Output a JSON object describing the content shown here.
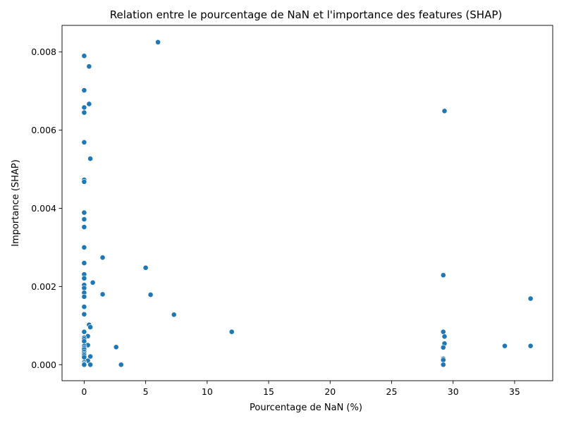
{
  "chart_data": {
    "type": "scatter",
    "title": "Relation entre le pourcentage de NaN et l'importance des features (SHAP)",
    "xlabel": "Pourcentage de NaN (%)",
    "ylabel": "Importance (SHAP)",
    "xlim": [
      -1.8,
      38.1
    ],
    "ylim": [
      -0.00041,
      0.00868
    ],
    "xticks": [
      0,
      5,
      10,
      15,
      20,
      25,
      30,
      35
    ],
    "xtick_labels": [
      "0",
      "5",
      "10",
      "15",
      "20",
      "25",
      "30",
      "35"
    ],
    "yticks": [
      0.0,
      0.002,
      0.004,
      0.006,
      0.008
    ],
    "ytick_labels": [
      "0.000",
      "0.002",
      "0.004",
      "0.006",
      "0.008"
    ],
    "grid": false,
    "legend": "none",
    "marker_color": "#1f77b4",
    "points": [
      [
        6.0,
        0.00825
      ],
      [
        0.0,
        0.0079
      ],
      [
        0.4,
        0.00763
      ],
      [
        0.0,
        0.00702
      ],
      [
        0.4,
        0.00667
      ],
      [
        0.0,
        0.00658
      ],
      [
        0.0,
        0.00645
      ],
      [
        29.3,
        0.00649
      ],
      [
        0.0,
        0.00569
      ],
      [
        0.5,
        0.00527
      ],
      [
        0.0,
        0.00473
      ],
      [
        0.0,
        0.00468
      ],
      [
        0.0,
        0.00389
      ],
      [
        0.0,
        0.00372
      ],
      [
        0.0,
        0.00352
      ],
      [
        0.0,
        0.003
      ],
      [
        1.5,
        0.00274
      ],
      [
        0.0,
        0.0026
      ],
      [
        5.0,
        0.00248
      ],
      [
        0.0,
        0.00231
      ],
      [
        29.2,
        0.00229
      ],
      [
        0.0,
        0.00221
      ],
      [
        0.7,
        0.0021
      ],
      [
        0.0,
        0.00204
      ],
      [
        0.0,
        0.00196
      ],
      [
        0.0,
        0.00184
      ],
      [
        1.5,
        0.0018
      ],
      [
        5.4,
        0.00179
      ],
      [
        0.0,
        0.00174
      ],
      [
        36.3,
        0.00169
      ],
      [
        0.0,
        0.00148
      ],
      [
        0.0,
        0.00129
      ],
      [
        7.3,
        0.00128
      ],
      [
        0.4,
        0.00102
      ],
      [
        0.5,
        0.00096
      ],
      [
        0.0,
        0.00084
      ],
      [
        12.0,
        0.00084
      ],
      [
        29.2,
        0.00084
      ],
      [
        0.3,
        0.00073
      ],
      [
        29.3,
        0.00072
      ],
      [
        0.0,
        0.00069
      ],
      [
        0.0,
        0.00065
      ],
      [
        0.0,
        0.0006
      ],
      [
        29.3,
        0.00054
      ],
      [
        0.3,
        0.0005
      ],
      [
        0.0,
        0.00048
      ],
      [
        34.2,
        0.00048
      ],
      [
        36.3,
        0.00048
      ],
      [
        2.6,
        0.00045
      ],
      [
        29.2,
        0.00044
      ],
      [
        0.0,
        0.00043
      ],
      [
        0.0,
        0.00039
      ],
      [
        0.0,
        0.00033
      ],
      [
        0.0,
        0.00028
      ],
      [
        0.0,
        0.00024
      ],
      [
        0.5,
        0.00021
      ],
      [
        0.0,
        0.00019
      ],
      [
        29.2,
        0.00015
      ],
      [
        29.2,
        0.00012
      ],
      [
        0.3,
        0.0001
      ],
      [
        0.0,
        6e-05
      ],
      [
        0.0,
        2e-05
      ],
      [
        0.5,
        0.0
      ],
      [
        3.0,
        0.0
      ],
      [
        29.2,
        0.0
      ],
      [
        0.0,
        0.0
      ]
    ]
  }
}
